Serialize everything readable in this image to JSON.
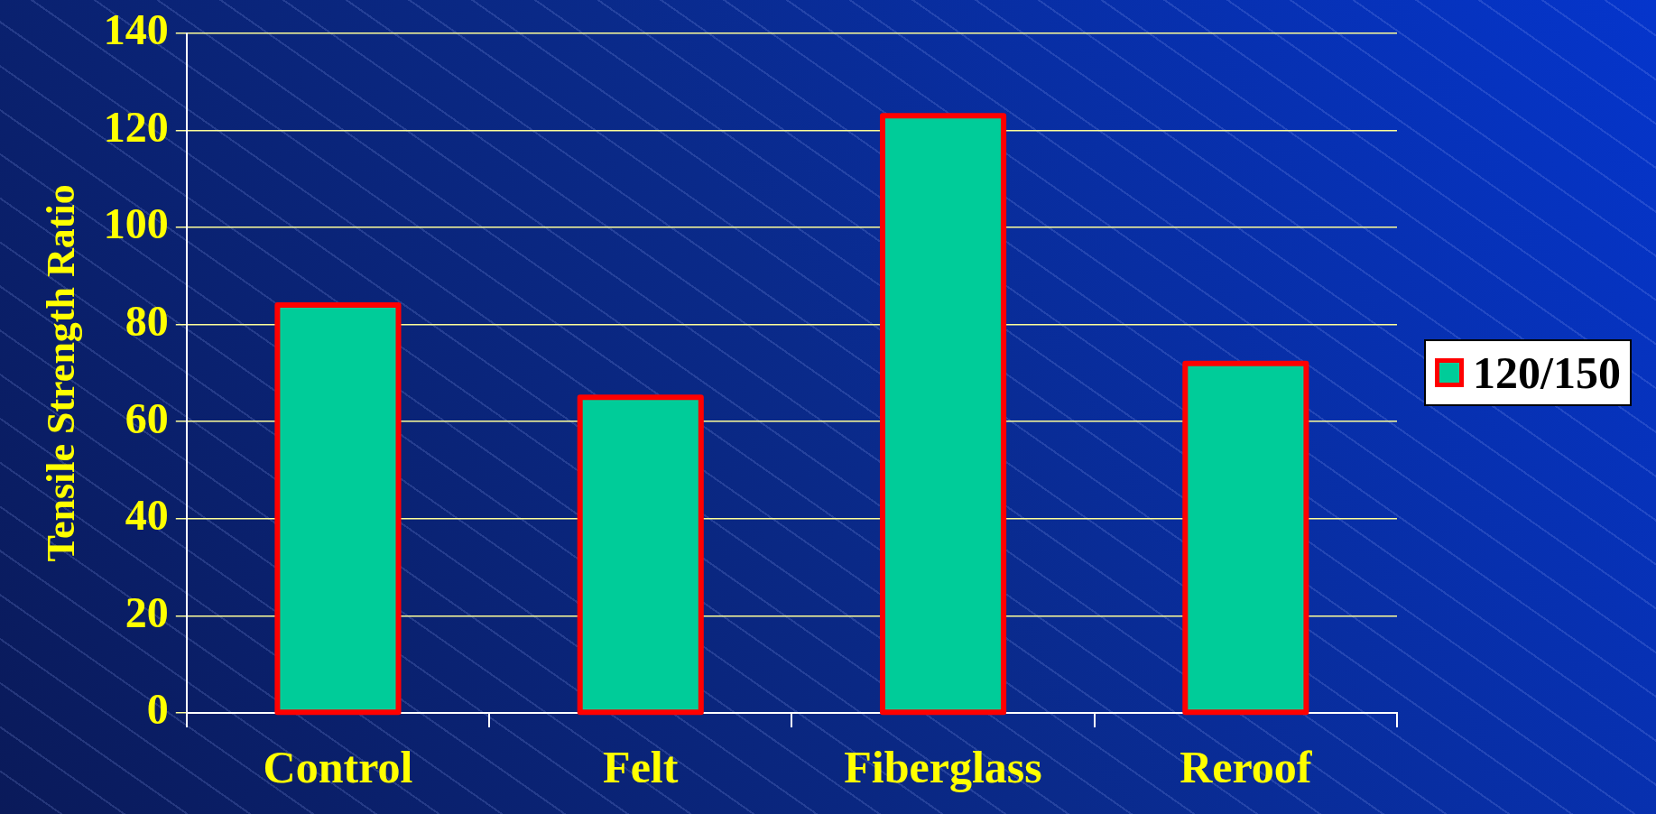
{
  "chart_data": {
    "type": "bar",
    "ylabel": "Tensile Strength Ratio",
    "categories": [
      "Control",
      "Felt",
      "Fiberglass",
      "Reroof"
    ],
    "series": [
      {
        "name": "120/150",
        "color": "#00cc99",
        "values": [
          84,
          65,
          123,
          72
        ]
      }
    ],
    "ylim": [
      0,
      140
    ],
    "yticks": [
      0,
      20,
      40,
      60,
      80,
      100,
      120,
      140
    ],
    "grid": "y",
    "legend": "right"
  }
}
